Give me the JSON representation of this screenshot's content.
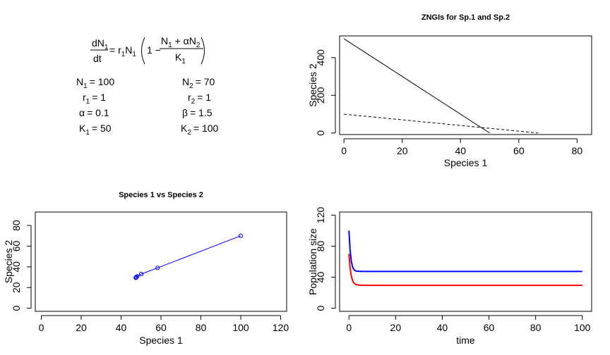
{
  "equation": {
    "lhs_num": "dN",
    "lhs_num_sub": "1",
    "lhs_den": "dt",
    "rhs_prefix": "= r",
    "rhs_r_sub": "1",
    "rhs_n": "N",
    "rhs_n_sub": "1",
    "paren_one": "1 −",
    "frac_num_a": "N",
    "frac_num_a_sub": "1",
    "frac_num_b": " + αN",
    "frac_num_b_sub": "2",
    "frac_den": "K",
    "frac_den_sub": "1"
  },
  "params_left": [
    {
      "sym": "N",
      "sub": "1",
      "val": "= 100"
    },
    {
      "sym": "r",
      "sub": "1",
      "val": "= 1"
    },
    {
      "sym": "α",
      "sub": "",
      "val": "= 0.1"
    },
    {
      "sym": "K",
      "sub": "1",
      "val": "= 50"
    }
  ],
  "params_right": [
    {
      "sym": "N",
      "sub": "2",
      "val": "= 70"
    },
    {
      "sym": "r",
      "sub": "2",
      "val": "= 1"
    },
    {
      "sym": "β",
      "sub": "",
      "val": "= 1.5"
    },
    {
      "sym": "K",
      "sub": "2",
      "val": "= 100"
    }
  ],
  "chart_data": [
    {
      "id": "zngi",
      "type": "line",
      "title": "ZNGIs for Sp.1 and Sp.2",
      "xlabel": "Species 1",
      "ylabel": "Species 2",
      "xlim": [
        -1.5,
        85
      ],
      "ylim": [
        -8,
        515
      ],
      "xticks": [
        0,
        20,
        40,
        60,
        80
      ],
      "yticks": [
        0,
        200,
        400
      ],
      "series": [
        {
          "style": "solid",
          "color": "#000000",
          "x": [
            0,
            50
          ],
          "y": [
            500,
            0
          ]
        },
        {
          "style": "dashed",
          "color": "#000000",
          "x": [
            0,
            66.67
          ],
          "y": [
            100,
            0
          ]
        }
      ]
    },
    {
      "id": "phase",
      "type": "line",
      "title": "Species 1 vs Species 2",
      "xlabel": "Species 1",
      "ylabel": "Species 2",
      "xlim": [
        -3,
        123
      ],
      "ylim": [
        -3,
        93
      ],
      "xticks": [
        0,
        20,
        40,
        60,
        80,
        100,
        120
      ],
      "yticks": [
        0,
        20,
        40,
        60,
        80
      ],
      "markers": "open-circle",
      "series": [
        {
          "color": "#0000ff",
          "x": [
            100,
            58.3,
            50.1,
            48.1,
            47.6,
            47.5,
            47.4,
            47.4,
            47.4
          ],
          "y": [
            70,
            39.0,
            33.0,
            30.8,
            30.0,
            29.7,
            29.6,
            29.5,
            29.5
          ]
        }
      ]
    },
    {
      "id": "timeseries",
      "type": "line",
      "title": "",
      "xlabel": "time",
      "ylabel": "Population size",
      "xlim": [
        -4,
        104
      ],
      "ylim": [
        -4,
        124
      ],
      "xticks": [
        0,
        20,
        40,
        60,
        80,
        100
      ],
      "yticks": [
        0,
        40,
        80,
        120
      ],
      "series": [
        {
          "color": "#0000ff",
          "x": [
            0,
            0.5,
            1,
            1.5,
            2,
            2.5,
            3,
            4,
            5,
            6,
            8,
            10,
            100
          ],
          "y": [
            100,
            75,
            61,
            54,
            50.5,
            48.8,
            48,
            47.6,
            47.5,
            47.4,
            47.4,
            47.4,
            47.4
          ]
        },
        {
          "color": "#ff0000",
          "x": [
            0,
            0.5,
            1,
            1.5,
            2,
            2.5,
            3,
            4,
            5,
            6,
            8,
            10,
            100
          ],
          "y": [
            70,
            52,
            42,
            36,
            33,
            31.5,
            30.6,
            29.9,
            29.7,
            29.6,
            29.5,
            29.5,
            29.5
          ]
        }
      ]
    }
  ]
}
